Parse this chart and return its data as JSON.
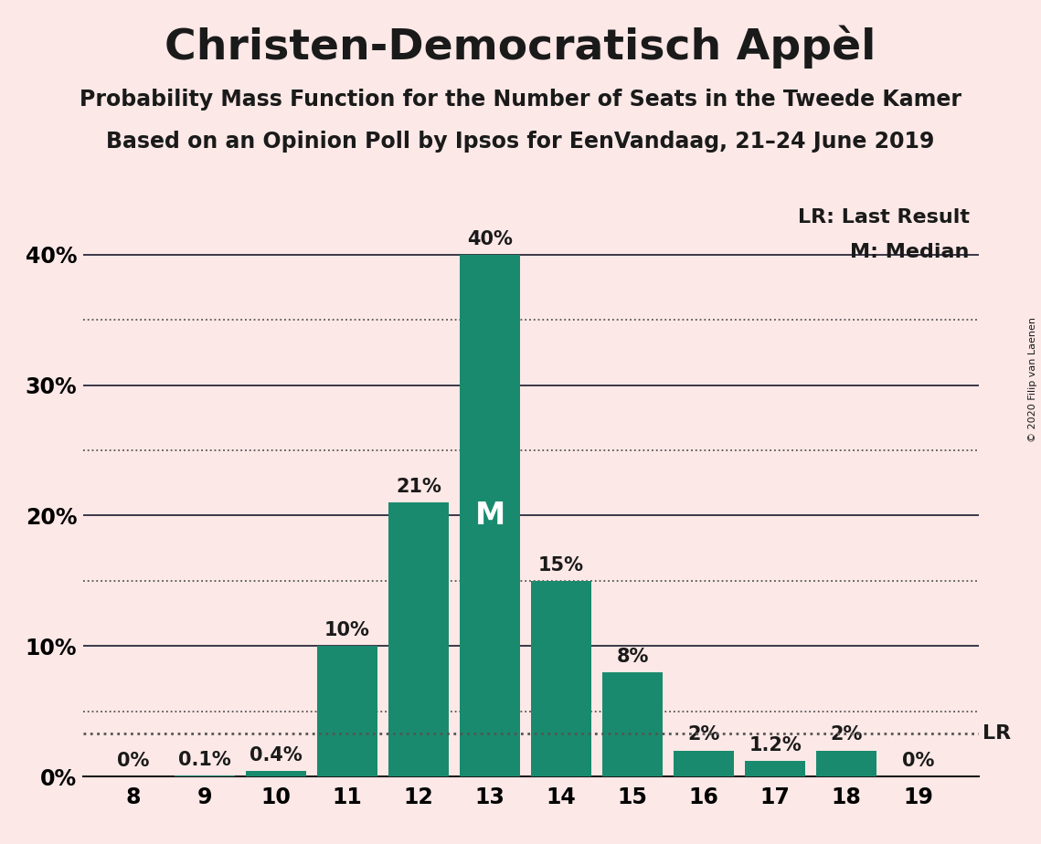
{
  "title": "Christen-Democratisch Appèl",
  "subtitle1": "Probability Mass Function for the Number of Seats in the Tweede Kamer",
  "subtitle2": "Based on an Opinion Poll by Ipsos for EenVandaag, 21–24 June 2019",
  "copyright": "© 2020 Filip van Laenen",
  "seats": [
    8,
    9,
    10,
    11,
    12,
    13,
    14,
    15,
    16,
    17,
    18,
    19
  ],
  "probabilities": [
    0.0,
    0.1,
    0.4,
    10.0,
    21.0,
    40.0,
    15.0,
    8.0,
    2.0,
    1.2,
    2.0,
    0.0
  ],
  "labels": [
    "0%",
    "0.1%",
    "0.4%",
    "10%",
    "21%",
    "40%",
    "15%",
    "8%",
    "2%",
    "1.2%",
    "2%",
    "0%"
  ],
  "bar_color": "#1a8a6e",
  "background_color": "#fce8e6",
  "yticks": [
    0,
    10,
    20,
    30,
    40
  ],
  "ytick_labels": [
    "0%",
    "10%",
    "20%",
    "30%",
    "40%"
  ],
  "ylim": [
    0,
    44
  ],
  "last_result": 3.3,
  "median": 13,
  "legend_lr": "LR: Last Result",
  "legend_m": "M: Median",
  "lr_label": "LR",
  "m_label": "M",
  "solid_line_color": "#1a1a2e",
  "dotted_line_color": "#555555",
  "title_fontsize": 34,
  "subtitle_fontsize": 17,
  "label_fontsize": 15,
  "axis_fontsize": 17,
  "legend_fontsize": 16,
  "m_fontsize": 24
}
